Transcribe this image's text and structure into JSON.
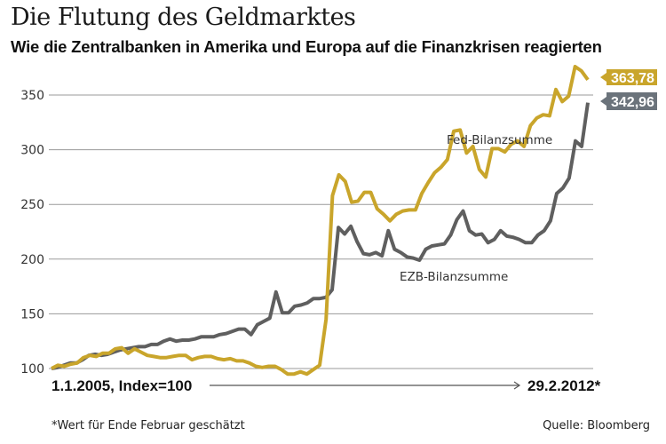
{
  "header": {
    "title": "Die Flutung des Geldmarktes",
    "subtitle": "Wie die Zentralbanken in Amerika und Europa auf die Finanzkrisen reagierten"
  },
  "footer": {
    "footnote": "*Wert für Ende Februar geschätzt",
    "source": "Quelle: Bloomberg"
  },
  "chart_data": {
    "type": "line",
    "title": "Die Flutung des Geldmarktes",
    "subtitle": "Wie die Zentralbanken in Amerika und Europa auf die Finanzkrisen reagierten",
    "xlabel_start": "1.1.2005, Index=100",
    "xlabel_end": "29.2.2012*",
    "x_range": [
      "2005-01",
      "2012-02"
    ],
    "ylim": [
      100,
      375
    ],
    "yticks": [
      100,
      150,
      200,
      250,
      300,
      350
    ],
    "ytick_labels": [
      "100",
      "150",
      "200",
      "250",
      "300",
      "350"
    ],
    "grid": true,
    "colors": {
      "fed": "#c9a52b",
      "ezb": "#5f5f5f",
      "ezb_badge": "#6b737b",
      "grid": "#9a9a9a"
    },
    "series": [
      {
        "name": "Fed-Bilanzsumme",
        "key": "fed",
        "end_value_label": "363,78",
        "values": [
          100,
          103,
          102,
          104,
          105,
          110,
          112,
          111,
          114,
          114,
          118,
          119,
          114,
          118,
          115,
          112,
          111,
          110,
          110,
          111,
          112,
          112,
          108,
          110,
          111,
          111,
          109,
          108,
          109,
          107,
          107,
          105,
          102,
          101,
          102,
          102,
          99,
          95,
          95,
          97,
          95,
          99,
          103,
          145,
          258,
          277,
          271,
          252,
          253,
          261,
          261,
          246,
          241,
          235,
          241,
          244,
          245,
          245,
          260,
          270,
          279,
          284,
          291,
          317,
          318,
          297,
          303,
          282,
          275,
          301,
          301,
          298,
          305,
          308,
          303,
          322,
          329,
          332,
          331,
          355,
          344,
          349,
          376,
          372,
          364
        ]
      },
      {
        "name": "EZB-Bilanzsumme",
        "key": "ezb",
        "end_value_label": "342,96",
        "values": [
          100,
          101,
          103,
          105,
          105,
          108,
          112,
          113,
          112,
          113,
          115,
          117,
          118,
          119,
          120,
          120,
          122,
          122,
          125,
          127,
          125,
          126,
          126,
          127,
          129,
          129,
          129,
          131,
          132,
          134,
          136,
          136,
          131,
          140,
          143,
          146,
          170,
          151,
          151,
          157,
          158,
          160,
          164,
          164,
          165,
          172,
          229,
          223,
          230,
          216,
          205,
          204,
          206,
          203,
          226,
          209,
          206,
          202,
          201,
          199,
          209,
          212,
          213,
          214,
          222,
          236,
          244,
          226,
          222,
          223,
          215,
          218,
          226,
          221,
          220,
          218,
          215,
          215,
          222,
          226,
          235,
          260,
          265,
          274,
          308,
          303,
          343
        ]
      }
    ]
  }
}
